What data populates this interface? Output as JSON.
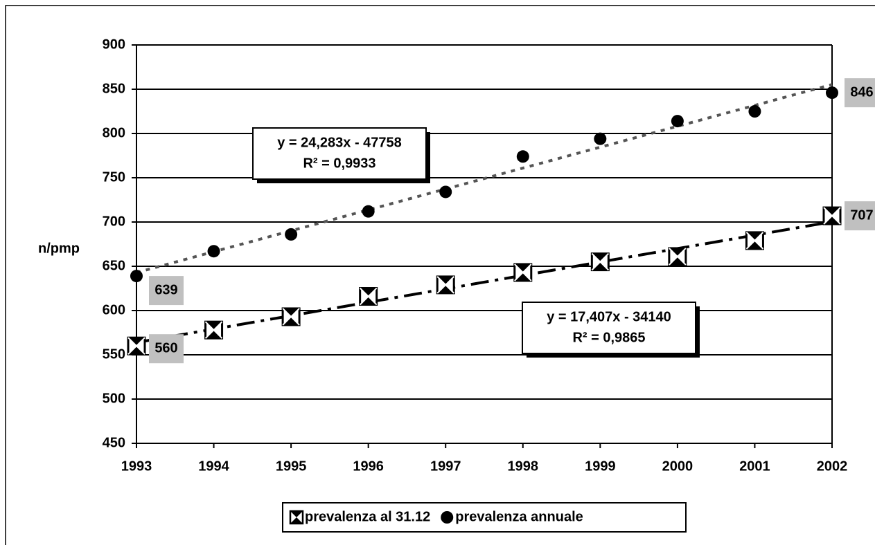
{
  "chart_data": {
    "type": "scatter",
    "y_label": "n/pmp",
    "categories": [
      "1993",
      "1994",
      "1995",
      "1996",
      "1997",
      "1998",
      "1999",
      "2000",
      "2001",
      "2002"
    ],
    "series": [
      {
        "name": "prevalenza al 31.12",
        "color": "#000000",
        "marker": "x-square",
        "trendline": "dash-dot",
        "values": [
          560,
          578,
          593,
          616,
          629,
          643,
          655,
          661,
          679,
          707
        ]
      },
      {
        "name": "prevalenza annuale",
        "color": "#000000",
        "marker": "circle",
        "trendline": "dotted",
        "values": [
          639,
          667,
          686,
          712,
          734,
          774,
          794,
          814,
          825,
          846
        ]
      }
    ],
    "annotations": [
      {
        "equation": "y = 17,407x - 34140",
        "r2": "R² = 0,9865"
      },
      {
        "equation": "y = 24,283x - 47758",
        "r2": "R² = 0,9933"
      }
    ],
    "ylim": [
      450,
      900
    ],
    "yticks": [
      450,
      500,
      550,
      600,
      650,
      700,
      750,
      800,
      850,
      900
    ],
    "grid": true,
    "legend": "bottom"
  }
}
